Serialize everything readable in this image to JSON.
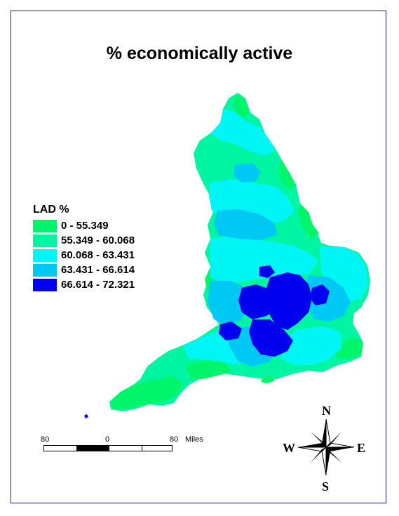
{
  "title": "% economically active",
  "legend": {
    "title": "LAD %",
    "classes": [
      {
        "label": "0 - 55.349",
        "color": "#00f56a"
      },
      {
        "label": "55.349 - 60.068",
        "color": "#00f5a3"
      },
      {
        "label": "60.068 - 63.431",
        "color": "#00f5f5"
      },
      {
        "label": "63.431 - 66.614",
        "color": "#00c8f5"
      },
      {
        "label": "66.614 - 72.321",
        "color": "#0000ee"
      }
    ]
  },
  "scale_bar": {
    "ticks": [
      "80",
      "0",
      "80"
    ],
    "unit": "Miles"
  },
  "north_arrow": {
    "n": "N",
    "s": "S",
    "e": "E",
    "w": "W"
  }
}
